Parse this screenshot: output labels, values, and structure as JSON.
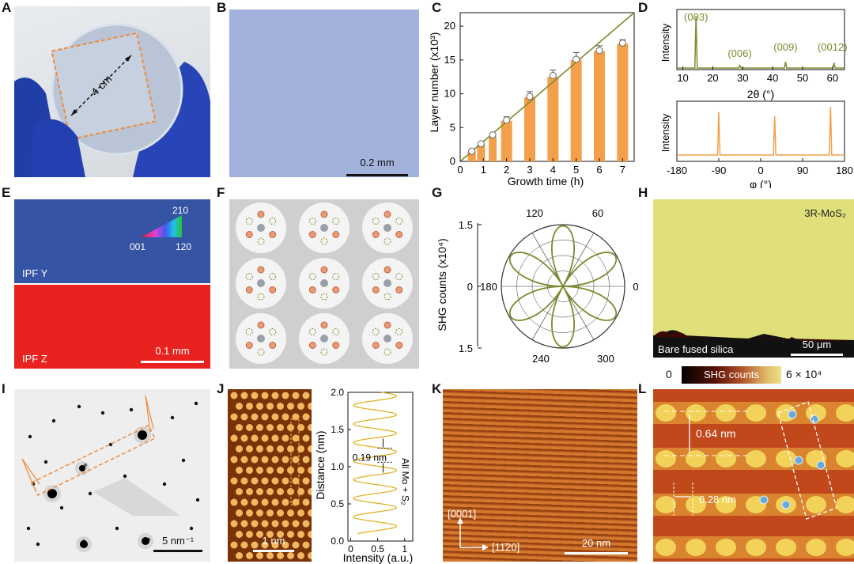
{
  "panel_labels": [
    "A",
    "B",
    "C",
    "D",
    "E",
    "F",
    "G",
    "H",
    "I",
    "J",
    "K",
    "L"
  ],
  "colors": {
    "orange": "#f4a04a",
    "olive": "#7d8a2c",
    "ebsd_y": "#3554a3",
    "ebsd_z": "#e7221f",
    "shg_high": "#dfe07a",
    "blue_film": "#a3b2dd"
  },
  "A": {
    "dimension": "4 cm"
  },
  "B": {
    "scale": "0.2 mm"
  },
  "C": {
    "chart_data": {
      "type": "bar",
      "xlabel": "Growth time (h)",
      "ylabel": "Layer number (x10³)",
      "x": [
        0.5,
        0.9,
        1.4,
        2,
        3,
        4,
        5,
        6,
        7
      ],
      "values": [
        1.5,
        2.5,
        3.6,
        6,
        9.5,
        12.5,
        15,
        16.3,
        17.4
      ],
      "errors": [
        0.3,
        0.3,
        0.4,
        0.6,
        0.8,
        1.0,
        1.1,
        0.8,
        0.6
      ],
      "markers": [
        1.5,
        2.6,
        3.9,
        6.1,
        9.6,
        12.7,
        15.1,
        16.4,
        17.5
      ],
      "fit_line": {
        "x": [
          0,
          7.5
        ],
        "y": [
          0,
          22.5
        ]
      },
      "xlim": [
        0,
        7.5
      ],
      "ylim": [
        0,
        22
      ],
      "xticks": [
        "0",
        "1",
        "2",
        "3",
        "4",
        "5",
        "6",
        "7"
      ],
      "yticks": [
        "0",
        "5",
        "10",
        "15",
        "20"
      ]
    }
  },
  "D": {
    "top": {
      "xlabel": "2θ (°)",
      "ylabel": "Intensity",
      "xticks": [
        "10",
        "20",
        "30",
        "40",
        "50",
        "60"
      ],
      "peaks": [
        "(003)",
        "(006)",
        "(009)",
        "(0012)"
      ],
      "peak_x": [
        14.4,
        29,
        44.3,
        60.5
      ],
      "peak_h": [
        1.0,
        0.05,
        0.12,
        0.1
      ]
    },
    "bottom": {
      "xlabel": "φ (°)",
      "ylabel": "Intensity",
      "xticks": [
        "-180",
        "-90",
        "0",
        "90",
        "180"
      ],
      "peak_x": [
        -90,
        30,
        150
      ],
      "peak_h": [
        0.82,
        0.75,
        0.92
      ]
    }
  },
  "E": {
    "y_label": "IPF Y",
    "z_label": "IPF Z",
    "scale": "0.1 mm",
    "triangle": {
      "c1": "001",
      "c2": "120",
      "c3": "210"
    }
  },
  "G": {
    "ylabel": "SHG counts (x10⁴)",
    "yticks": [
      "1.5",
      "0",
      "1.5"
    ],
    "angles": [
      "120",
      "60",
      "180",
      "0",
      "240",
      "300"
    ]
  },
  "H": {
    "material": "3R-MoS₂",
    "substrate": "Bare fused silica",
    "scale": "50 μm",
    "colorbar": {
      "min": "0",
      "label": "SHG counts",
      "max": "6 × 10⁴"
    }
  },
  "I": {
    "scale": "5 nm⁻¹"
  },
  "J": {
    "scale": "1 nm",
    "profile": {
      "xlabel": "Intensity (a.u.)",
      "ylabel": "Distance (nm)",
      "xticks": [
        "0",
        "0.5",
        "1"
      ],
      "yticks": [
        "0.0",
        "0.5",
        "1.0",
        "1.5",
        "2.0"
      ],
      "spacing": "0.19 nm",
      "annotation": "All Mo + S₂"
    }
  },
  "K": {
    "dir1": "[0001]",
    "dir2": "[11̄20]",
    "scale": "20 nm"
  },
  "L": {
    "d1": "0.64 nm",
    "d2": "0.28 nm"
  }
}
